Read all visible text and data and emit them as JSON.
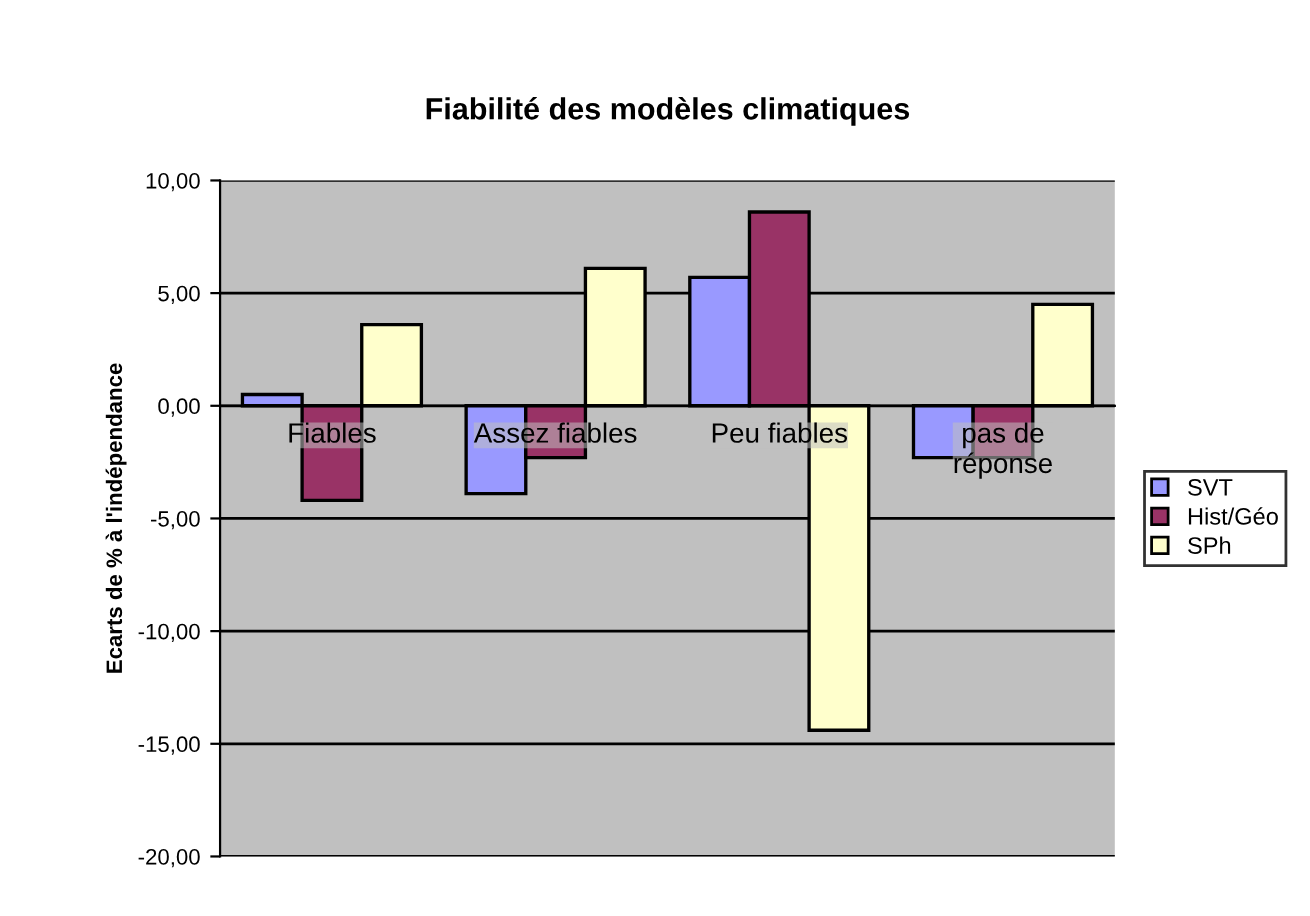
{
  "chart_data": {
    "type": "bar",
    "title": "Fiabilité des modèles climatiques",
    "ylabel": "Ecarts de % à l'indépendance",
    "categories": [
      "Fiables",
      "Assez fiables",
      "Peu fiables",
      "pas de\nréponse"
    ],
    "series": [
      {
        "name": "SVT",
        "color": "#9999ff",
        "values": [
          0.5,
          -3.9,
          5.7,
          -2.3
        ]
      },
      {
        "name": "Hist/Géo",
        "color": "#993366",
        "values": [
          -4.2,
          -2.3,
          8.6,
          -2.3
        ]
      },
      {
        "name": "SPh",
        "color": "#ffffcc",
        "values": [
          3.6,
          6.1,
          -14.4,
          4.5
        ]
      }
    ],
    "ylim": [
      -20,
      10
    ],
    "yticks": [
      {
        "value": -20,
        "label": "-20,00"
      },
      {
        "value": -15,
        "label": "-15,00"
      },
      {
        "value": -10,
        "label": "-10,00"
      },
      {
        "value": -5,
        "label": "-5,00"
      },
      {
        "value": 0,
        "label": "0,00"
      },
      {
        "value": 5,
        "label": "5,00"
      },
      {
        "value": 10,
        "label": "10,00"
      }
    ],
    "grid": "y",
    "legend": "right"
  }
}
